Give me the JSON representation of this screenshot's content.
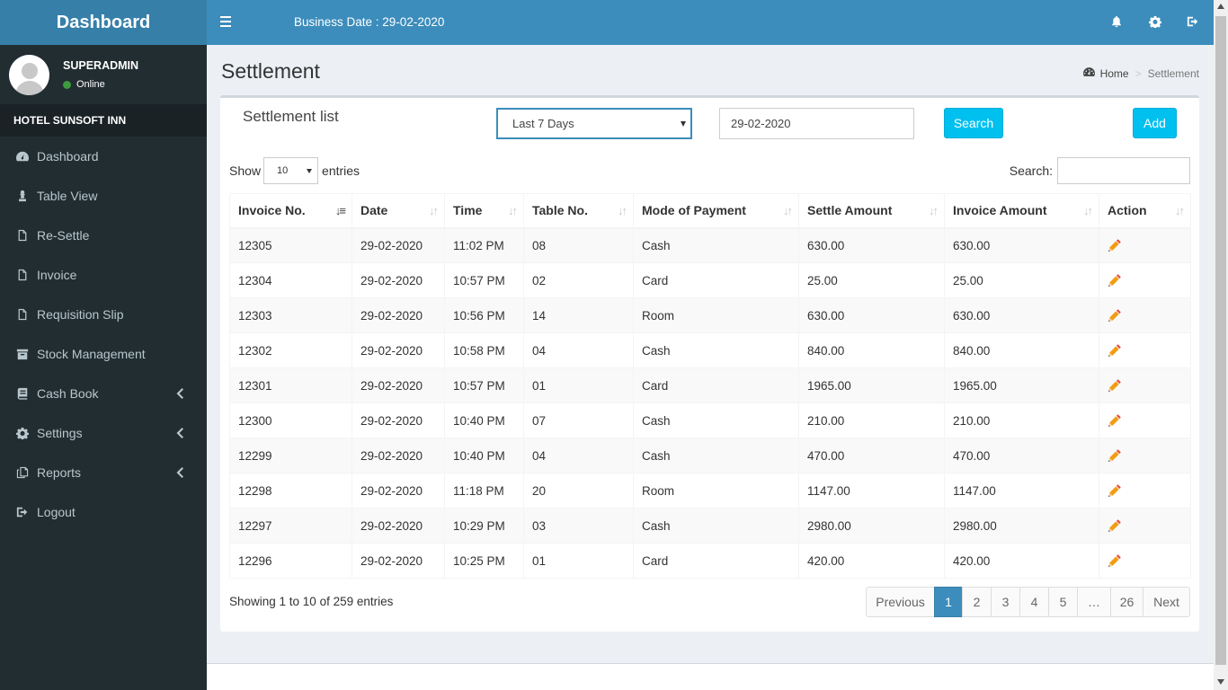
{
  "sidebar": {
    "logo": "Dashboard",
    "user": {
      "name": "SUPERADMIN",
      "status": "Online"
    },
    "hotel": "HOTEL SUNSOFT INN",
    "items": [
      {
        "label": "Dashboard",
        "icon": "dashboard-icon"
      },
      {
        "label": "Table View",
        "icon": "chess-pawn-icon"
      },
      {
        "label": "Re-Settle",
        "icon": "file-icon"
      },
      {
        "label": "Invoice",
        "icon": "file-icon"
      },
      {
        "label": "Requisition Slip",
        "icon": "file-icon"
      },
      {
        "label": "Stock Management",
        "icon": "archive-icon"
      },
      {
        "label": "Cash Book",
        "icon": "book-icon",
        "has_submenu": true
      },
      {
        "label": "Settings",
        "icon": "gear-icon",
        "has_submenu": true
      },
      {
        "label": "Reports",
        "icon": "copy-icon",
        "has_submenu": true
      },
      {
        "label": "Logout",
        "icon": "sign-out-icon"
      }
    ]
  },
  "topbar": {
    "business_date": "Business Date : 29-02-2020",
    "icons": [
      "bell-icon",
      "gear-icon",
      "sign-out-icon"
    ]
  },
  "page": {
    "title": "Settlement",
    "breadcrumb": {
      "home": "Home",
      "current": "Settlement"
    }
  },
  "box": {
    "title": "Settlement list",
    "range_select": "Last 7 Days",
    "date_value": "29-02-2020",
    "search_button": "Search",
    "add_button": "Add",
    "show_label": "Show",
    "entries_label": "entries",
    "page_length": "10",
    "search_label": "Search:"
  },
  "table": {
    "columns": [
      "Invoice No.",
      "Date",
      "Time",
      "Table No.",
      "Mode of Payment",
      "Settle Amount",
      "Invoice Amount",
      "Action"
    ],
    "rows": [
      [
        "12305",
        "29-02-2020",
        "11:02 PM",
        "08",
        "Cash",
        "630.00",
        "630.00"
      ],
      [
        "12304",
        "29-02-2020",
        "10:57 PM",
        "02",
        "Card",
        "25.00",
        "25.00"
      ],
      [
        "12303",
        "29-02-2020",
        "10:56 PM",
        "14",
        "Room",
        "630.00",
        "630.00"
      ],
      [
        "12302",
        "29-02-2020",
        "10:58 PM",
        "04",
        "Cash",
        "840.00",
        "840.00"
      ],
      [
        "12301",
        "29-02-2020",
        "10:57 PM",
        "01",
        "Card",
        "1965.00",
        "1965.00"
      ],
      [
        "12300",
        "29-02-2020",
        "10:40 PM",
        "07",
        "Cash",
        "210.00",
        "210.00"
      ],
      [
        "12299",
        "29-02-2020",
        "10:40 PM",
        "04",
        "Cash",
        "470.00",
        "470.00"
      ],
      [
        "12298",
        "29-02-2020",
        "11:18 PM",
        "20",
        "Room",
        "1147.00",
        "1147.00"
      ],
      [
        "12297",
        "29-02-2020",
        "10:29 PM",
        "03",
        "Cash",
        "2980.00",
        "2980.00"
      ],
      [
        "12296",
        "29-02-2020",
        "10:25 PM",
        "01",
        "Card",
        "420.00",
        "420.00"
      ]
    ]
  },
  "pagination": {
    "info": "Showing 1 to 10 of 259 entries",
    "previous": "Previous",
    "pages": [
      "1",
      "2",
      "3",
      "4",
      "5",
      "…",
      "26"
    ],
    "active_page": "1",
    "next": "Next"
  },
  "colors": {
    "topbar": "#3c8dbc",
    "sidebar": "#222d32",
    "accent_button": "#00c0ef",
    "pencil": "#f39c12"
  }
}
